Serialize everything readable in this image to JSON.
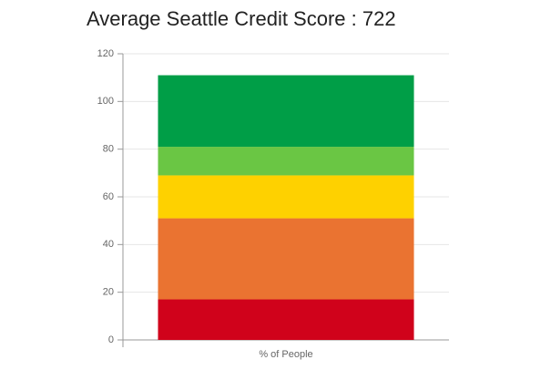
{
  "chart_data": {
    "type": "stacked_bar",
    "title": "Average Seattle Credit Score : 722",
    "categories": [
      "% of People"
    ],
    "series": [
      {
        "color": "#d0021b",
        "values": [
          17
        ]
      },
      {
        "color": "#ea7331",
        "values": [
          34
        ]
      },
      {
        "color": "#fed100",
        "values": [
          18
        ]
      },
      {
        "color": "#6ac644",
        "values": [
          12
        ]
      },
      {
        "color": "#009e47",
        "values": [
          30
        ]
      }
    ],
    "ylim": [
      0,
      120
    ],
    "yticks": [
      0,
      20,
      40,
      60,
      80,
      100,
      120
    ],
    "grid": true
  }
}
